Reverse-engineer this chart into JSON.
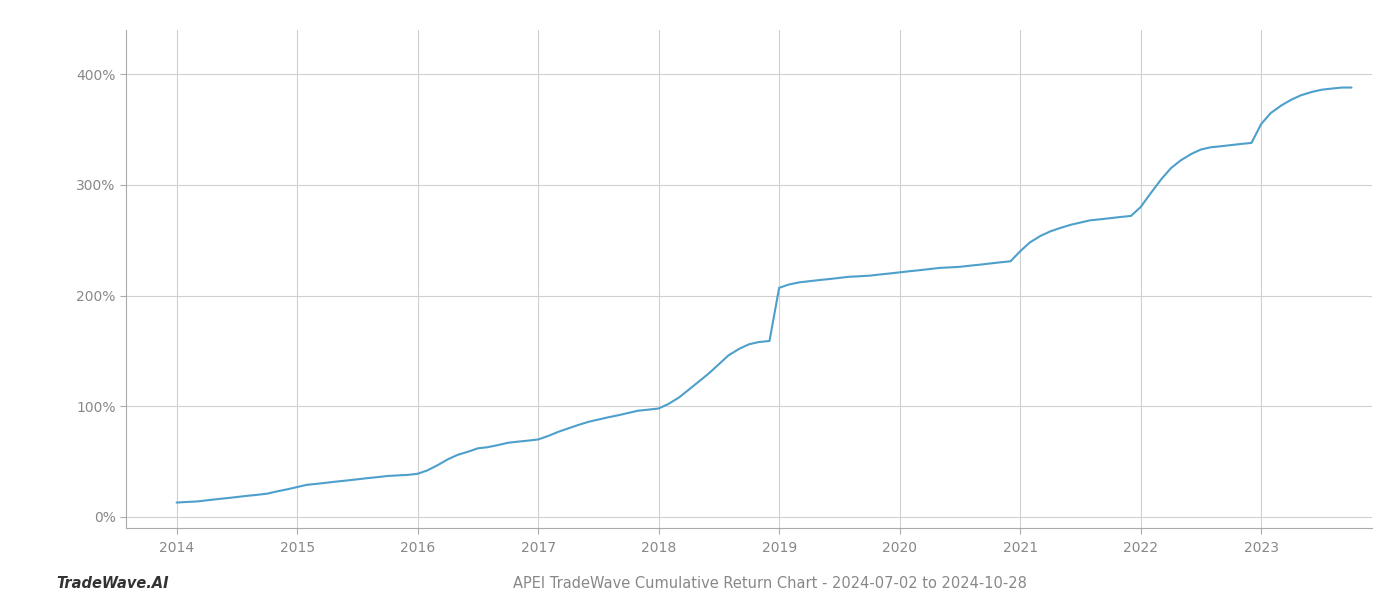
{
  "title": "APEI TradeWave Cumulative Return Chart - 2024-07-02 to 2024-10-28",
  "watermark": "TradeWave.AI",
  "line_color": "#4d9fcc",
  "background_color": "#ffffff",
  "grid_color": "#d0d0d0",
  "x_years": [
    2014,
    2015,
    2016,
    2017,
    2018,
    2019,
    2020,
    2021,
    2022,
    2023
  ],
  "x_data": [
    2014.0,
    2014.08,
    2014.17,
    2014.25,
    2014.33,
    2014.42,
    2014.5,
    2014.58,
    2014.67,
    2014.75,
    2014.83,
    2014.92,
    2015.0,
    2015.08,
    2015.17,
    2015.25,
    2015.33,
    2015.42,
    2015.5,
    2015.58,
    2015.67,
    2015.75,
    2015.83,
    2015.92,
    2016.0,
    2016.08,
    2016.17,
    2016.25,
    2016.33,
    2016.42,
    2016.5,
    2016.58,
    2016.67,
    2016.75,
    2016.83,
    2016.92,
    2017.0,
    2017.08,
    2017.17,
    2017.25,
    2017.33,
    2017.42,
    2017.5,
    2017.58,
    2017.67,
    2017.75,
    2017.83,
    2017.92,
    2018.0,
    2018.08,
    2018.17,
    2018.25,
    2018.33,
    2018.42,
    2018.5,
    2018.58,
    2018.67,
    2018.75,
    2018.83,
    2018.92,
    2019.0,
    2019.08,
    2019.17,
    2019.25,
    2019.33,
    2019.42,
    2019.5,
    2019.58,
    2019.67,
    2019.75,
    2019.83,
    2019.92,
    2020.0,
    2020.08,
    2020.17,
    2020.25,
    2020.33,
    2020.42,
    2020.5,
    2020.58,
    2020.67,
    2020.75,
    2020.83,
    2020.92,
    2021.0,
    2021.08,
    2021.17,
    2021.25,
    2021.33,
    2021.42,
    2021.5,
    2021.58,
    2021.67,
    2021.75,
    2021.83,
    2021.92,
    2022.0,
    2022.08,
    2022.17,
    2022.25,
    2022.33,
    2022.42,
    2022.5,
    2022.58,
    2022.67,
    2022.75,
    2022.83,
    2022.92,
    2023.0,
    2023.08,
    2023.17,
    2023.25,
    2023.33,
    2023.42,
    2023.5,
    2023.58,
    2023.67,
    2023.75
  ],
  "y_data": [
    13,
    13.5,
    14,
    15,
    16,
    17,
    18,
    19,
    20,
    21,
    23,
    25,
    27,
    29,
    30,
    31,
    32,
    33,
    34,
    35,
    36,
    37,
    37.5,
    38,
    39,
    42,
    47,
    52,
    56,
    59,
    62,
    63,
    65,
    67,
    68,
    69,
    70,
    73,
    77,
    80,
    83,
    86,
    88,
    90,
    92,
    94,
    96,
    97,
    98,
    102,
    108,
    115,
    122,
    130,
    138,
    146,
    152,
    156,
    158,
    159,
    207,
    210,
    212,
    213,
    214,
    215,
    216,
    217,
    217.5,
    218,
    219,
    220,
    221,
    222,
    223,
    224,
    225,
    225.5,
    226,
    227,
    228,
    229,
    230,
    231,
    240,
    248,
    254,
    258,
    261,
    264,
    266,
    268,
    269,
    270,
    271,
    272,
    280,
    292,
    305,
    315,
    322,
    328,
    332,
    334,
    335,
    336,
    337,
    338,
    355,
    365,
    372,
    377,
    381,
    384,
    386,
    387,
    388,
    388
  ],
  "ylim": [
    -10,
    440
  ],
  "yticks": [
    0,
    100,
    200,
    300,
    400
  ],
  "ytick_labels": [
    "0%",
    "100%",
    "200%",
    "300%",
    "400%"
  ],
  "xlim": [
    2013.58,
    2023.92
  ],
  "line_width": 1.5,
  "title_fontsize": 10.5,
  "watermark_fontsize": 10.5,
  "tick_fontsize": 10,
  "spine_color": "#aaaaaa",
  "tick_color": "#888888"
}
